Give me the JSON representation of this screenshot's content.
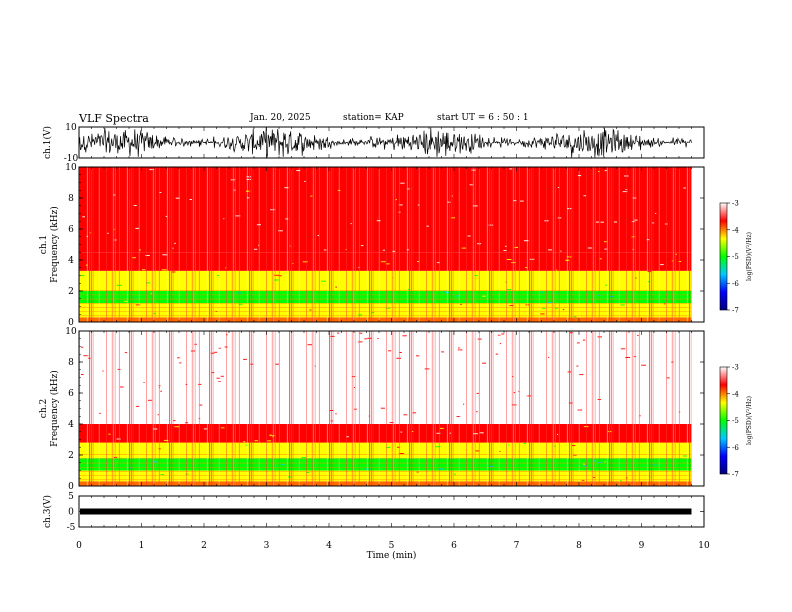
{
  "chart_data": {
    "type": "heatmap",
    "title": "VLF Spectra",
    "date": "Jan. 20, 2025",
    "station": "station= KAP",
    "start": "start  UT =   6 : 50 : 1",
    "x_axis": {
      "label": "Time  (min)",
      "range": [
        0,
        10
      ],
      "ticks": [
        "0",
        "1",
        "2",
        "3",
        "4",
        "5",
        "6",
        "7",
        "8",
        "9",
        "10"
      ]
    },
    "panels": [
      {
        "kind": "waveform",
        "ylabel": "ch.1(V)",
        "ylim": [
          -10,
          10
        ],
        "ticks": [
          "10",
          "-10"
        ],
        "data_end_min": 9.8
      },
      {
        "kind": "spectrogram",
        "ylabel": "ch.1 Frequency  (kHz)",
        "ylabel_top": "ch.1",
        "ylabel_bottom": "Frequency  (kHz)",
        "ylim": [
          0,
          10
        ],
        "ticks": [
          "0",
          "2",
          "4",
          "6",
          "8",
          "10"
        ],
        "data_end_min": 9.8,
        "bands": [
          {
            "from_khz": 0.3,
            "to_khz": 1.2,
            "level": -4.3
          },
          {
            "from_khz": 1.2,
            "to_khz": 2.0,
            "level": -5.2
          },
          {
            "from_khz": 2.0,
            "to_khz": 3.3,
            "level": -4.4
          },
          {
            "from_khz": 3.3,
            "to_khz": 4.5,
            "level": -3.9
          },
          {
            "from_khz": 4.5,
            "to_khz": 10.0,
            "level": -3.4
          }
        ]
      },
      {
        "kind": "spectrogram",
        "ylabel": "ch.2 Frequency  (kHz)",
        "ylabel_top": "ch.2",
        "ylabel_bottom": "Frequency  (kHz)",
        "ylim": [
          0,
          10
        ],
        "ticks": [
          "0",
          "2",
          "4",
          "6",
          "8",
          "10"
        ],
        "data_end_min": 9.8,
        "bands": [
          {
            "from_khz": 0.3,
            "to_khz": 1.0,
            "level": -4.3
          },
          {
            "from_khz": 1.0,
            "to_khz": 1.8,
            "level": -5.2
          },
          {
            "from_khz": 1.8,
            "to_khz": 2.8,
            "level": -4.4
          },
          {
            "from_khz": 2.8,
            "to_khz": 4.0,
            "level": -3.8
          },
          {
            "from_khz": 4.0,
            "to_khz": 10.0,
            "level": -3.3
          }
        ]
      },
      {
        "kind": "waveform",
        "ylabel": "ch.3(V)",
        "ylim": [
          -5,
          5
        ],
        "ticks": [
          "5",
          "0",
          "-5"
        ],
        "level_v": 0,
        "data_end_min": 9.8
      }
    ],
    "colorbar": {
      "label": "log(PSD)(V²/Hz)",
      "range": [
        -7,
        -3
      ],
      "ticks": [
        "-3",
        "-4",
        "-5",
        "-6",
        "-7"
      ],
      "colors": [
        "#000080",
        "#0000ff",
        "#00c8ff",
        "#00ff00",
        "#ffff00",
        "#ff0000",
        "#ffffff"
      ]
    }
  }
}
